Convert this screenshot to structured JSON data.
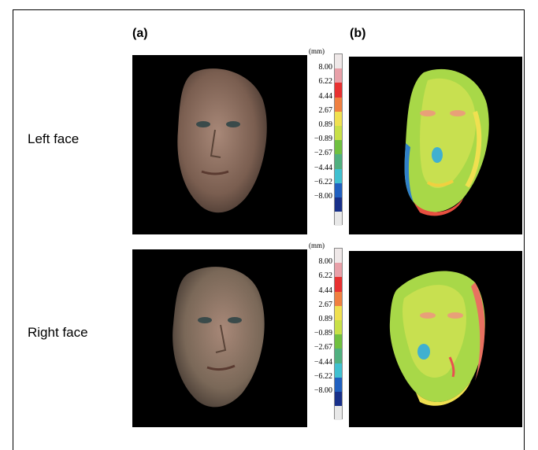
{
  "panels": {
    "a_label": "(a)",
    "b_label": "(b)"
  },
  "rows": [
    {
      "label": "Left face"
    },
    {
      "label": "Right face"
    }
  ],
  "scale": {
    "unit": "(mm)",
    "ticks": [
      "8.00",
      "6.22",
      "4.44",
      "2.67",
      "0.89",
      "−0.89",
      "−2.67",
      "−4.44",
      "−6.22",
      "−8.00"
    ],
    "colors": [
      "#efe8e8",
      "#e8a0a8",
      "#e83030",
      "#f08040",
      "#f0e050",
      "#c8e048",
      "#70c040",
      "#50b080",
      "#40c0d0",
      "#2060c0",
      "#18308a",
      "#e8e8e8"
    ]
  }
}
